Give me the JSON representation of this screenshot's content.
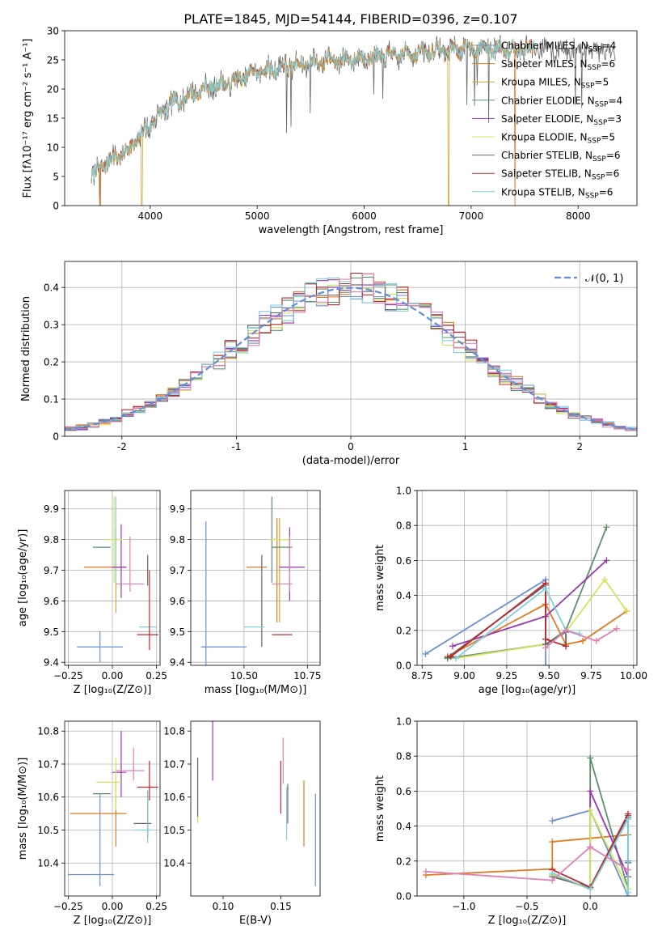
{
  "figure_title": "PLATE=1845, MJD=54144, FIBERID=0396, z=0.107",
  "colors": {
    "Chabrier MILES": "#6a8fd8",
    "Salpeter MILES": "#e07b22",
    "Kroupa MILES": "#d3a33a",
    "Chabrier ELODIE": "#5d8f6b",
    "Salpeter ELODIE": "#9a35b5",
    "Kroupa ELODIE": "#d6e35a",
    "Chabrier STELIB": "#666666",
    "Salpeter STELIB": "#c0282f",
    "Kroupa STELIB": "#7fd0dc",
    "pink": "#e080b8",
    "gauss": "#5f8fd8"
  },
  "chart_data": [
    {
      "id": "spectrum",
      "type": "line",
      "xlabel": "wavelength [Angstrom, rest frame]",
      "ylabel": "Flux [fλ10⁻¹⁷ erg cm⁻² s⁻¹ A⁻¹]",
      "xlim": [
        3200,
        8550
      ],
      "ylim": [
        0,
        30
      ],
      "xticks": [
        4000,
        5000,
        6000,
        7000,
        8000
      ],
      "yticks": [
        0,
        5,
        10,
        15,
        20,
        25,
        30
      ],
      "legend_position": "top-right",
      "continuum": [
        [
          3450,
          5.2
        ],
        [
          3600,
          7.5
        ],
        [
          3800,
          9.5
        ],
        [
          4000,
          14.0
        ],
        [
          4200,
          17.5
        ],
        [
          4500,
          20.0
        ],
        [
          4800,
          21.5
        ],
        [
          5000,
          23.0
        ],
        [
          5300,
          24.0
        ],
        [
          5600,
          24.8
        ],
        [
          6000,
          25.3
        ],
        [
          6500,
          26.2
        ],
        [
          7000,
          27.0
        ],
        [
          7500,
          27.0
        ],
        [
          8000,
          26.5
        ],
        [
          8300,
          26.2
        ]
      ],
      "drops": [
        [
          3530,
          "Salpeter MILES"
        ],
        [
          3920,
          "Kroupa MILES"
        ],
        [
          6790,
          "Kroupa MILES"
        ],
        [
          7410,
          "Salpeter MILES"
        ]
      ],
      "series": [
        {
          "name": "Chabrier MILES",
          "nssp": "4"
        },
        {
          "name": "Salpeter MILES",
          "nssp": "6"
        },
        {
          "name": "Kroupa MILES",
          "nssp": "5"
        },
        {
          "name": "Chabrier ELODIE",
          "nssp": "4"
        },
        {
          "name": "Salpeter ELODIE",
          "nssp": "3"
        },
        {
          "name": "Kroupa ELODIE",
          "nssp": "5"
        },
        {
          "name": "Chabrier STELIB",
          "nssp": "6"
        },
        {
          "name": "Salpeter STELIB",
          "nssp": "6"
        },
        {
          "name": "Kroupa STELIB",
          "nssp": "6"
        }
      ]
    },
    {
      "id": "residuals",
      "type": "line",
      "xlabel": "(data-model)/error",
      "ylabel": "Normed distribution",
      "xlim": [
        -2.5,
        2.5
      ],
      "ylim": [
        0,
        0.47
      ],
      "xticks": [
        -2,
        -1,
        0,
        1,
        2
      ],
      "yticks": [
        0.0,
        0.1,
        0.2,
        0.3,
        0.4
      ],
      "grid": true,
      "legend_label": "𝒩(0, 1)",
      "legend_position": "top-right",
      "bin_width": 0.1,
      "histogram_series": [
        "Chabrier MILES",
        "Salpeter MILES",
        "Chabrier ELODIE",
        "Salpeter ELODIE",
        "Kroupa ELODIE",
        "Chabrier STELIB",
        "Salpeter STELIB",
        "Kroupa STELIB",
        "pink"
      ]
    },
    {
      "id": "age_vs_Z",
      "type": "scatter",
      "xlabel": "Z [log₁₀(Z/Z⊙)]",
      "ylabel": "age  [log₁₀(age/yr)]",
      "xlim": [
        -0.27,
        0.27
      ],
      "ylim": [
        9.39,
        9.96
      ],
      "xticks": [
        -0.25,
        0.0,
        0.25
      ],
      "xticklabels": [
        "−0.25",
        "0.00",
        "0.25"
      ],
      "yticks": [
        9.4,
        9.5,
        9.6,
        9.7,
        9.8,
        9.9
      ],
      "grid": true,
      "points": [
        {
          "c": "Chabrier MILES",
          "x": -0.07,
          "xerr": 0.13,
          "y": 9.45,
          "yerr": 0.05
        },
        {
          "c": "Salpeter MILES",
          "x": -0.04,
          "xerr": 0.12,
          "y": 9.71,
          "yerr": 0.0
        },
        {
          "c": "Kroupa MILES",
          "x": 0.02,
          "xerr": 0.0,
          "y": 9.7,
          "yerr": 0.14
        },
        {
          "c": "Chabrier ELODIE",
          "x": -0.06,
          "xerr": 0.05,
          "y": 9.775,
          "yerr": 0.0
        },
        {
          "c": "Salpeter ELODIE",
          "x": 0.05,
          "xerr": 0.0,
          "y": 9.73,
          "yerr": 0.12
        },
        {
          "c": "Kroupa ELODIE",
          "x": 0.01,
          "xerr": 0.05,
          "y": 9.8,
          "yerr": 0.14
        },
        {
          "c": "Chabrier STELIB",
          "x": 0.2,
          "xerr": 0.0,
          "y": 9.7,
          "yerr": 0.05
        },
        {
          "c": "Salpeter STELIB",
          "x": 0.2,
          "xerr": 0.06,
          "y": 9.49,
          "yerr": 0.0
        },
        {
          "c": "Kroupa STELIB",
          "x": 0.2,
          "xerr": 0.05,
          "y": 9.515,
          "yerr": 0.0
        },
        {
          "c": "pink",
          "x": 0.1,
          "xerr": 0.08,
          "y": 9.655,
          "yerr": 0.0
        },
        {
          "c": "pink",
          "x": 0.1,
          "xerr": 0.0,
          "y": 9.72,
          "yerr": 0.09
        },
        {
          "c": "Salpeter STELIB",
          "x": 0.21,
          "xerr": 0.0,
          "y": 9.57,
          "yerr": 0.13
        },
        {
          "c": "Kroupa STELIB",
          "x": 0.02,
          "xerr": 0.0,
          "y": 9.8,
          "yerr": 0.14
        },
        {
          "c": "Salpeter ELODIE",
          "x": 0.04,
          "xerr": 0.04,
          "y": 9.71,
          "yerr": 0.0
        }
      ]
    },
    {
      "id": "age_vs_mass",
      "type": "scatter",
      "xlabel": "mass [log₁₀(M/M⊙)]",
      "xlim": [
        10.29,
        10.8
      ],
      "ylim": [
        9.39,
        9.96
      ],
      "xticks": [
        10.5,
        10.75
      ],
      "xticklabels": [
        "10.50",
        "10.75"
      ],
      "yticks": [
        9.4,
        9.5,
        9.6,
        9.7,
        9.8,
        9.9
      ],
      "grid": true,
      "points": [
        {
          "c": "Chabrier MILES",
          "x": 10.42,
          "xerr": 0.09,
          "y": 9.45,
          "yerr": 0.0
        },
        {
          "c": "Chabrier MILES",
          "x": 10.35,
          "xerr": 0.0,
          "y": 9.6,
          "yerr": 0.26
        },
        {
          "c": "Salpeter MILES",
          "x": 10.55,
          "xerr": 0.04,
          "y": 9.71,
          "yerr": 0.0
        },
        {
          "c": "Salpeter MILES",
          "x": 10.63,
          "xerr": 0.0,
          "y": 9.7,
          "yerr": 0.17
        },
        {
          "c": "Kroupa MILES",
          "x": 10.64,
          "xerr": 0.0,
          "y": 9.7,
          "yerr": 0.17
        },
        {
          "c": "Chabrier ELODIE",
          "x": 10.61,
          "xerr": 0.0,
          "y": 9.8,
          "yerr": 0.14
        },
        {
          "c": "Chabrier ELODIE",
          "x": 10.65,
          "xerr": 0.04,
          "y": 9.775,
          "yerr": 0.0
        },
        {
          "c": "Salpeter ELODIE",
          "x": 10.69,
          "xerr": 0.05,
          "y": 9.71,
          "yerr": 0.0
        },
        {
          "c": "Salpeter ELODIE",
          "x": 10.68,
          "xerr": 0.0,
          "y": 9.72,
          "yerr": 0.12
        },
        {
          "c": "Kroupa ELODIE",
          "x": 10.64,
          "xerr": 0.04,
          "y": 9.8,
          "yerr": 0.0
        },
        {
          "c": "Chabrier STELIB",
          "x": 10.57,
          "xerr": 0.0,
          "y": 9.6,
          "yerr": 0.15
        },
        {
          "c": "Salpeter STELIB",
          "x": 10.65,
          "xerr": 0.04,
          "y": 9.49,
          "yerr": 0.0
        },
        {
          "c": "Kroupa STELIB",
          "x": 10.54,
          "xerr": 0.04,
          "y": 9.515,
          "yerr": 0.0
        },
        {
          "c": "pink",
          "x": 10.65,
          "xerr": 0.04,
          "y": 9.655,
          "yerr": 0.0
        },
        {
          "c": "pink",
          "x": 10.68,
          "xerr": 0.0,
          "y": 9.72,
          "yerr": 0.09
        }
      ]
    },
    {
      "id": "massweight_vs_age",
      "type": "line",
      "xlabel": "age  [log₁₀(age/yr)]",
      "ylabel": "mass weight",
      "xlim": [
        8.72,
        10.02
      ],
      "ylim": [
        0,
        1
      ],
      "xticks": [
        8.75,
        9.0,
        9.25,
        9.5,
        9.75,
        10.0
      ],
      "xticklabels": [
        "8.75",
        "9.00",
        "9.25",
        "9.50",
        "9.75",
        "10.00"
      ],
      "yticks": [
        0.0,
        0.2,
        0.4,
        0.6,
        0.8,
        1.0
      ],
      "grid": true,
      "series": [
        {
          "c": "Chabrier MILES",
          "x": [
            8.77,
            9.48,
            9.48
          ],
          "y": [
            0.065,
            0.49,
            0.0
          ]
        },
        {
          "c": "Salpeter MILES",
          "x": [
            8.9,
            9.48,
            9.6,
            9.7,
            9.96
          ],
          "y": [
            0.05,
            0.35,
            0.12,
            0.14,
            0.31
          ]
        },
        {
          "c": "Chabrier ELODIE",
          "x": [
            8.9,
            9.48,
            9.6,
            9.84
          ],
          "y": [
            0.04,
            0.12,
            0.2,
            0.79
          ]
        },
        {
          "c": "Salpeter ELODIE",
          "x": [
            8.93,
            9.48,
            9.84
          ],
          "y": [
            0.11,
            0.28,
            0.6
          ]
        },
        {
          "c": "Kroupa ELODIE",
          "x": [
            8.95,
            9.48,
            9.6,
            9.83,
            9.96
          ],
          "y": [
            0.04,
            0.12,
            0.19,
            0.49,
            0.31
          ]
        },
        {
          "c": "Chabrier STELIB",
          "x": [
            8.9,
            9.48,
            9.48,
            9.6,
            9.6
          ],
          "y": [
            0.045,
            0.46,
            0.12,
            0.19,
            0.11
          ]
        },
        {
          "c": "Salpeter STELIB",
          "x": [
            8.92,
            9.48,
            9.48,
            9.6
          ],
          "y": [
            0.05,
            0.47,
            0.15,
            0.11
          ]
        },
        {
          "c": "Kroupa STELIB",
          "x": [
            8.95,
            9.48,
            9.6,
            9.68
          ],
          "y": [
            0.04,
            0.44,
            0.2,
            0.18
          ]
        },
        {
          "c": "pink",
          "x": [
            9.48,
            9.6,
            9.78,
            9.9
          ],
          "y": [
            0.1,
            0.2,
            0.14,
            0.21
          ]
        }
      ]
    },
    {
      "id": "mass_vs_Z",
      "type": "scatter",
      "xlabel": "Z [log₁₀(Z/Z⊙)]",
      "ylabel": "mass [log₁₀(M/M⊙)]",
      "xlim": [
        -0.27,
        0.27
      ],
      "ylim": [
        10.3,
        10.83
      ],
      "xticks": [
        -0.25,
        0.0,
        0.25
      ],
      "xticklabels": [
        "−0.25",
        "0.00",
        "0.25"
      ],
      "yticks": [
        10.4,
        10.5,
        10.6,
        10.7,
        10.8
      ],
      "grid": true,
      "points": [
        {
          "c": "Chabrier MILES",
          "x": -0.12,
          "xerr": 0.13,
          "y": 10.365,
          "yerr": 0.0
        },
        {
          "c": "Chabrier MILES",
          "x": -0.07,
          "xerr": 0.0,
          "y": 10.47,
          "yerr": 0.14
        },
        {
          "c": "Salpeter MILES",
          "x": -0.08,
          "xerr": 0.16,
          "y": 10.55,
          "yerr": 0.0
        },
        {
          "c": "Salpeter MILES",
          "x": 0.02,
          "xerr": 0.0,
          "y": 10.55,
          "yerr": 0.1
        },
        {
          "c": "Chabrier ELODIE",
          "x": -0.06,
          "xerr": 0.05,
          "y": 10.61,
          "yerr": 0.0
        },
        {
          "c": "Salpeter ELODIE",
          "x": 0.04,
          "xerr": 0.04,
          "y": 10.675,
          "yerr": 0.0
        },
        {
          "c": "Salpeter ELODIE",
          "x": 0.05,
          "xerr": 0.0,
          "y": 10.7,
          "yerr": 0.1
        },
        {
          "c": "Kroupa ELODIE",
          "x": -0.02,
          "xerr": 0.07,
          "y": 10.645,
          "yerr": 0.0
        },
        {
          "c": "Kroupa ELODIE",
          "x": 0.02,
          "xerr": 0.0,
          "y": 10.64,
          "yerr": 0.08
        },
        {
          "c": "Chabrier STELIB",
          "x": 0.2,
          "xerr": 0.0,
          "y": 10.55,
          "yerr": 0.07
        },
        {
          "c": "Chabrier STELIB",
          "x": 0.17,
          "xerr": 0.05,
          "y": 10.52,
          "yerr": 0.0
        },
        {
          "c": "Salpeter STELIB",
          "x": 0.21,
          "xerr": 0.0,
          "y": 10.65,
          "yerr": 0.06
        },
        {
          "c": "Salpeter STELIB",
          "x": 0.2,
          "xerr": 0.06,
          "y": 10.63,
          "yerr": 0.0
        },
        {
          "c": "Kroupa STELIB",
          "x": 0.2,
          "xerr": 0.0,
          "y": 10.54,
          "yerr": 0.08
        },
        {
          "c": "Kroupa STELIB",
          "x": 0.17,
          "xerr": 0.05,
          "y": 10.5,
          "yerr": 0.0
        },
        {
          "c": "pink",
          "x": 0.1,
          "xerr": 0.08,
          "y": 10.68,
          "yerr": 0.0
        },
        {
          "c": "pink",
          "x": 0.12,
          "xerr": 0.0,
          "y": 10.7,
          "yerr": 0.05
        }
      ]
    },
    {
      "id": "mass_vs_ebv",
      "type": "scatter",
      "xlabel": "E(B-V)",
      "xlim": [
        0.072,
        0.184
      ],
      "ylim": [
        10.3,
        10.83
      ],
      "xticks": [
        0.1,
        0.15
      ],
      "xticklabels": [
        "0.10",
        "0.15"
      ],
      "yticks": [
        10.4,
        10.5,
        10.6,
        10.7,
        10.8
      ],
      "grid": false,
      "points": [
        {
          "c": "Kroupa ELODIE",
          "x": 0.078,
          "xerr": 0.0,
          "y": 10.62,
          "yerr": 0.1
        },
        {
          "c": "Chabrier STELIB",
          "x": 0.078,
          "xerr": 0.0,
          "y": 10.63,
          "yerr": 0.09
        },
        {
          "c": "Salpeter ELODIE",
          "x": 0.091,
          "xerr": 0.0,
          "y": 10.77,
          "yerr": 0.12
        },
        {
          "c": "Salpeter STELIB",
          "x": 0.15,
          "xerr": 0.0,
          "y": 10.63,
          "yerr": 0.08
        },
        {
          "c": "pink",
          "x": 0.152,
          "xerr": 0.0,
          "y": 10.71,
          "yerr": 0.07
        },
        {
          "c": "Kroupa STELIB",
          "x": 0.155,
          "xerr": 0.0,
          "y": 10.55,
          "yerr": 0.08
        },
        {
          "c": "Chabrier STELIB",
          "x": 0.156,
          "xerr": 0.0,
          "y": 10.58,
          "yerr": 0.06
        },
        {
          "c": "Salpeter MILES",
          "x": 0.17,
          "xerr": 0.0,
          "y": 10.55,
          "yerr": 0.1
        },
        {
          "c": "Chabrier MILES",
          "x": 0.18,
          "xerr": 0.0,
          "y": 10.47,
          "yerr": 0.14
        }
      ]
    },
    {
      "id": "massweight_vs_Z",
      "type": "line",
      "xlabel": "Z [log₁₀(Z/Z⊙)]",
      "ylabel": "mass weight",
      "xlim": [
        -1.37,
        0.37
      ],
      "ylim": [
        0,
        1
      ],
      "xticks": [
        -1.0,
        -0.5,
        0.0
      ],
      "xticklabels": [
        "−1.0",
        "−0.5",
        "0.0"
      ],
      "yticks": [
        0.0,
        0.2,
        0.4,
        0.6,
        0.8,
        1.0
      ],
      "grid": true,
      "series": [
        {
          "c": "Chabrier MILES",
          "x": [
            -0.3,
            0.0,
            0.3,
            0.3
          ],
          "y": [
            0.43,
            0.49,
            0.0,
            0.2
          ]
        },
        {
          "c": "Salpeter MILES",
          "x": [
            -1.3,
            -0.3,
            -0.3,
            0.3
          ],
          "y": [
            0.12,
            0.155,
            0.31,
            0.35
          ]
        },
        {
          "c": "Chabrier ELODIE",
          "x": [
            -0.3,
            0.0,
            0.0,
            0.3,
            0.3
          ],
          "y": [
            0.12,
            0.04,
            0.79,
            0.04,
            0.45
          ]
        },
        {
          "c": "Salpeter ELODIE",
          "x": [
            0.0,
            0.0,
            0.3
          ],
          "y": [
            0.28,
            0.6,
            0.11
          ]
        },
        {
          "c": "Kroupa ELODIE",
          "x": [
            -0.3,
            0.0,
            0.0,
            0.3
          ],
          "y": [
            0.12,
            0.04,
            0.49,
            0.04
          ]
        },
        {
          "c": "Chabrier STELIB",
          "x": [
            -0.3,
            0.0,
            0.3,
            0.3
          ],
          "y": [
            0.11,
            0.05,
            0.46,
            0.19
          ]
        },
        {
          "c": "Salpeter STELIB",
          "x": [
            -0.3,
            0.0,
            0.3
          ],
          "y": [
            0.15,
            0.05,
            0.47
          ]
        },
        {
          "c": "Kroupa STELIB",
          "x": [
            -0.3,
            0.0,
            0.3,
            0.3
          ],
          "y": [
            0.13,
            0.04,
            0.44,
            0.02
          ]
        },
        {
          "c": "pink",
          "x": [
            -1.3,
            -0.3,
            0.0,
            0.3
          ],
          "y": [
            0.14,
            0.09,
            0.28,
            0.15
          ]
        }
      ]
    }
  ]
}
